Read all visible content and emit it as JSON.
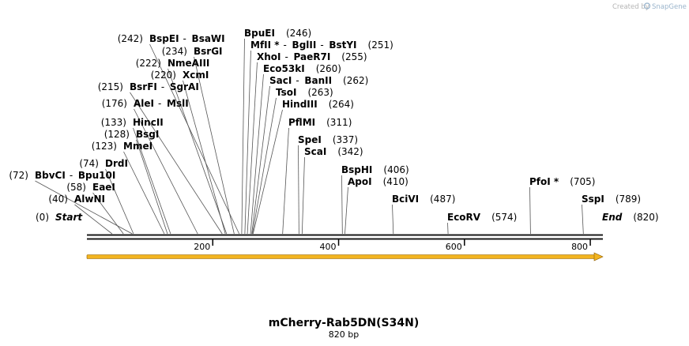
{
  "credit": {
    "prefix": "Created by",
    "app": "SnapGene"
  },
  "map": {
    "title": "mCherry-Rab5DN(S34N)",
    "length_label": "820 bp",
    "length": 820,
    "ticks": [
      "200",
      "400",
      "600",
      "800"
    ],
    "feature_color": "#f2b420"
  },
  "sites": [
    {
      "pos": "(0)",
      "bp": 0,
      "names": [
        "Start"
      ],
      "italic": true
    },
    {
      "pos": "(40)",
      "bp": 40,
      "names": [
        "AlwNI"
      ]
    },
    {
      "pos": "(58)",
      "bp": 58,
      "names": [
        "EaeI"
      ]
    },
    {
      "pos": "(72)",
      "bp": 72,
      "names": [
        "BbvCI",
        "Bpu10I"
      ]
    },
    {
      "pos": "(74)",
      "bp": 74,
      "names": [
        "DrdI"
      ]
    },
    {
      "pos": "(123)",
      "bp": 123,
      "names": [
        "MmeI"
      ]
    },
    {
      "pos": "(128)",
      "bp": 128,
      "names": [
        "BsgI"
      ]
    },
    {
      "pos": "(133)",
      "bp": 133,
      "names": [
        "HincII"
      ]
    },
    {
      "pos": "(176)",
      "bp": 176,
      "names": [
        "AleI",
        "MslI"
      ]
    },
    {
      "pos": "(215)",
      "bp": 215,
      "names": [
        "BsrFI",
        "SgrAI"
      ]
    },
    {
      "pos": "(220)",
      "bp": 220,
      "names": [
        "XcmI"
      ]
    },
    {
      "pos": "(222)",
      "bp": 222,
      "names": [
        "NmeAIII"
      ]
    },
    {
      "pos": "(234)",
      "bp": 234,
      "names": [
        "BsrGI"
      ]
    },
    {
      "pos": "(242)",
      "bp": 242,
      "names": [
        "BspEI",
        "BsaWI"
      ]
    },
    {
      "pos": "(246)",
      "bp": 246,
      "names": [
        "BpuEI"
      ]
    },
    {
      "pos": "(251)",
      "bp": 251,
      "names": [
        "MfII *",
        "BglII",
        "BstYI"
      ]
    },
    {
      "pos": "(255)",
      "bp": 255,
      "names": [
        "XhoI",
        "PaeR7I"
      ]
    },
    {
      "pos": "(260)",
      "bp": 260,
      "names": [
        "Eco53kI"
      ]
    },
    {
      "pos": "(262)",
      "bp": 262,
      "names": [
        "SacI",
        "BanII"
      ]
    },
    {
      "pos": "(263)",
      "bp": 263,
      "names": [
        "TsoI"
      ]
    },
    {
      "pos": "(264)",
      "bp": 264,
      "names": [
        "HindIII"
      ]
    },
    {
      "pos": "(311)",
      "bp": 311,
      "names": [
        "PflMI"
      ]
    },
    {
      "pos": "(337)",
      "bp": 337,
      "names": [
        "SpeI"
      ]
    },
    {
      "pos": "(342)",
      "bp": 342,
      "names": [
        "ScaI"
      ]
    },
    {
      "pos": "(406)",
      "bp": 406,
      "names": [
        "BspHI"
      ]
    },
    {
      "pos": "(410)",
      "bp": 410,
      "names": [
        "ApoI"
      ]
    },
    {
      "pos": "(487)",
      "bp": 487,
      "names": [
        "BciVI"
      ]
    },
    {
      "pos": "(574)",
      "bp": 574,
      "names": [
        "EcoRV"
      ]
    },
    {
      "pos": "(705)",
      "bp": 705,
      "names": [
        "PfoI *"
      ]
    },
    {
      "pos": "(789)",
      "bp": 789,
      "names": [
        "SspI"
      ]
    },
    {
      "pos": "(820)",
      "bp": 820,
      "names": [
        "End"
      ],
      "italic": true
    }
  ]
}
